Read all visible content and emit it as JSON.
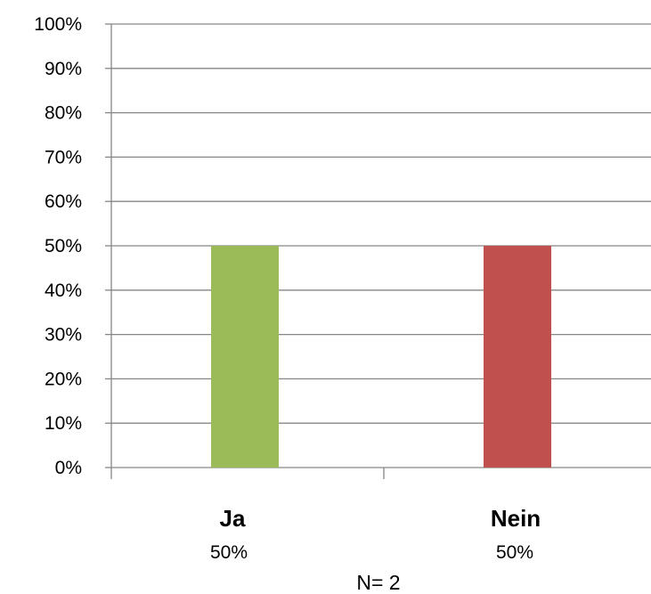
{
  "chart_data": {
    "type": "bar",
    "categories": [
      "Ja",
      "Nein"
    ],
    "values": [
      50,
      50
    ],
    "value_labels": [
      "50%",
      "50%"
    ],
    "colors": [
      "#9BBB59",
      "#C0504D"
    ],
    "ylim": [
      0,
      100
    ],
    "ytick_labels": [
      "0%",
      "10%",
      "20%",
      "30%",
      "40%",
      "50%",
      "60%",
      "70%",
      "80%",
      "90%",
      "100%"
    ],
    "grid": true,
    "grid_color": "#868686",
    "title": "",
    "xlabel": "",
    "ylabel": "",
    "footnote": "N= 2"
  }
}
